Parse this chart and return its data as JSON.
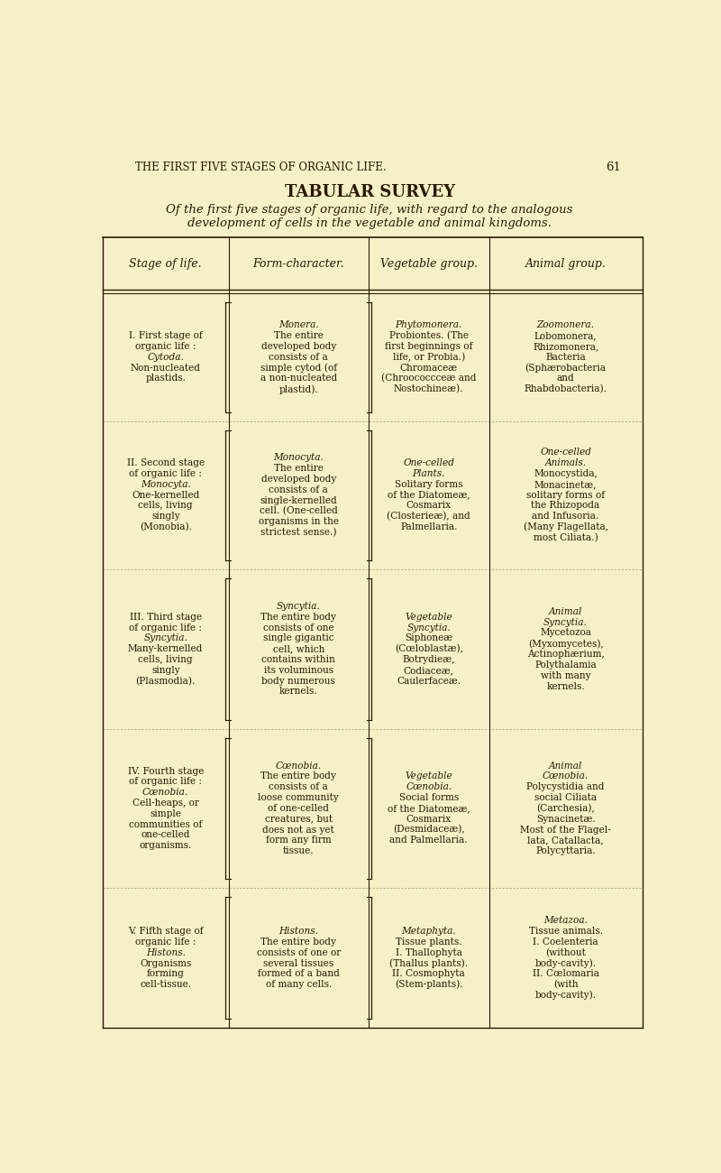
{
  "bg_color": "#f5f0c8",
  "text_color": "#2a1a00",
  "page_header": "THE FIRST FIVE STAGES OF ORGANIC LIFE.",
  "page_number": "61",
  "title": "TABULAR SURVEY",
  "subtitle_line1": "Of the first five stages of organic life, with regard to the analogous",
  "subtitle_line2": "development of cells in the vegetable and animal kingdoms.",
  "col_headers": [
    "Stage of life.",
    "Form-character.",
    "Vegetable group.",
    "Animal group."
  ],
  "rows": [
    {
      "stage_label": [
        "I. First stage of",
        "organic life :",
        "Cytoda.",
        "Non-nucleated",
        "plastids."
      ],
      "stage_italic_idx": [
        2
      ],
      "form_italic": "Monera.",
      "form_text": [
        "The entire",
        "developed body",
        "consists of a",
        "simple cytod (of",
        "a non-nucleated",
        "plastid)."
      ],
      "veg_italic": "Phytomonera.",
      "veg_text": [
        "Probiontes. (The",
        "first beginnings of",
        "life, or Probia.)",
        "Chromaceæ",
        "(Chroococcceæ and",
        "Nostochineæ)."
      ],
      "anim_italic": "Zoomonera.",
      "anim_text": [
        "Lobomonera,",
        "Rhizomonera,",
        "Bacteria",
        "(Sphærobacteria",
        "and",
        "Rhabdobacteria)."
      ]
    },
    {
      "stage_label": [
        "II. Second stage",
        "of organic life :",
        "Monocyta.",
        "One-kernelled",
        "cells, living",
        "singly",
        "(Monobia)."
      ],
      "stage_italic_idx": [
        2
      ],
      "form_italic": "Monocyta.",
      "form_text": [
        "The entire",
        "developed body",
        "consists of a",
        "single-kernelled",
        "cell. (One-celled",
        "organisms in the",
        "strictest sense.)"
      ],
      "veg_italic": "One-celled",
      "veg_italic2": "Plants.",
      "veg_text": [
        "Solitary forms",
        "of the Diatomeæ,",
        "Cosmarix",
        "(Closterieæ), and",
        "Palmellaria."
      ],
      "anim_italic": "One-celled",
      "anim_italic2": "Animals.",
      "anim_text": [
        "Monocystida,",
        "Monacinetæ,",
        "solitary forms of",
        "the Rhizopoda",
        "and Infusoria.",
        "(Many Flagellata,",
        "most Ciliata.)"
      ]
    },
    {
      "stage_label": [
        "III. Third stage",
        "of organic life :",
        "Syncytia.",
        "Many-kernelled",
        "cells, living",
        "singly",
        "(Plasmodia)."
      ],
      "stage_italic_idx": [
        2
      ],
      "form_italic": "Syncytia.",
      "form_text": [
        "The entire body",
        "consists of one",
        "single gigantic",
        "cell, which",
        "contains within",
        "its voluminous",
        "body numerous",
        "kernels."
      ],
      "veg_italic": "Vegetable",
      "veg_italic2": "Syncytia.",
      "veg_text": [
        "Siphoneæ",
        "(Cœloblastæ),",
        "Botrydieæ,",
        "Codiaceæ,",
        "Caulerfaceæ."
      ],
      "anim_italic": "Animal",
      "anim_italic2": "Syncytia.",
      "anim_text": [
        "Mycetozoa",
        "(Myxomycetes),",
        "Actinophærium,",
        "Polythalamia",
        "with many",
        "kernels."
      ]
    },
    {
      "stage_label": [
        "IV. Fourth stage",
        "of organic life :",
        "Cœnobia.",
        "Cell-heaps, or",
        "simple",
        "communities of",
        "one-celled",
        "organisms."
      ],
      "stage_italic_idx": [
        2
      ],
      "form_italic": "Cœnobia.",
      "form_text": [
        "The entire body",
        "consists of a",
        "loose community",
        "of one-celled",
        "creatures, but",
        "does not as yet",
        "form any firm",
        "tissue."
      ],
      "veg_italic": "Vegetable",
      "veg_italic2": "Cœnobia.",
      "veg_text": [
        "Social forms",
        "of the Diatomeæ,",
        "Cosmarix",
        "(Desmidaceæ),",
        "and Palmellaria."
      ],
      "anim_italic": "Animal",
      "anim_italic2": "Cœnobia.",
      "anim_text": [
        "Polycystidia and",
        "social Ciliata",
        "(Carchesia),",
        "Synacinetæ.",
        "Most of the Flagel-",
        "lata, Catallacta,",
        "Polycyttaria."
      ]
    },
    {
      "stage_label": [
        "V. Fifth stage of",
        "organic life :",
        "Histons.",
        "Organisms",
        "forming",
        "cell-tissue."
      ],
      "stage_italic_idx": [
        2
      ],
      "form_italic": "Histons.",
      "form_text": [
        "The entire body",
        "consists of one or",
        "several tissues",
        "formed of a band",
        "of many cells."
      ],
      "veg_italic": "Metaphyta.",
      "veg_text": [
        "Tissue plants.",
        "I. Thallophyta",
        "(Thallus plants).",
        "II. Cosmophyta",
        "(Stem-plants)."
      ],
      "anim_italic": "Metazoa.",
      "anim_text": [
        "Tissue animals.",
        "I. Coelenteria",
        "(without",
        "body-cavity).",
        "II. Cœlomaria",
        "(with",
        "body-cavity)."
      ]
    }
  ]
}
